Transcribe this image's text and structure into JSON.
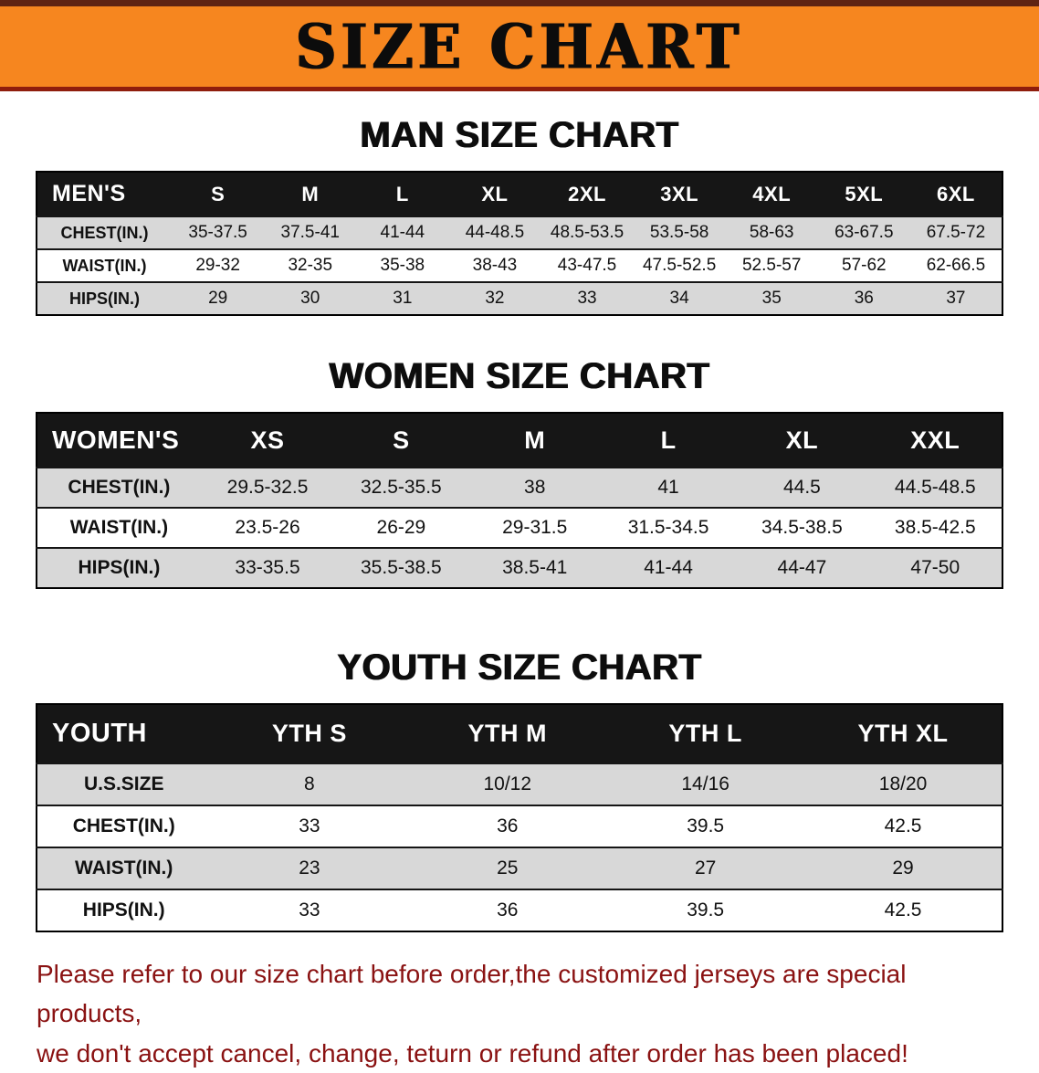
{
  "banner": {
    "title": "SIZE CHART"
  },
  "sections": [
    {
      "heading": "MAN SIZE CHART",
      "table": {
        "header": [
          "MEN'S",
          "S",
          "M",
          "L",
          "XL",
          "2XL",
          "3XL",
          "4XL",
          "5XL",
          "6XL"
        ],
        "rows": [
          {
            "label": "CHEST(IN.)",
            "values": [
              "35-37.5",
              "37.5-41",
              "41-44",
              "44-48.5",
              "48.5-53.5",
              "53.5-58",
              "58-63",
              "63-67.5",
              "67.5-72"
            ]
          },
          {
            "label": "WAIST(IN.)",
            "values": [
              "29-32",
              "32-35",
              "35-38",
              "38-43",
              "43-47.5",
              "47.5-52.5",
              "52.5-57",
              "57-62",
              "62-66.5"
            ]
          },
          {
            "label": "HIPS(IN.)",
            "values": [
              "29",
              "30",
              "31",
              "32",
              "33",
              "34",
              "35",
              "36",
              "37"
            ]
          }
        ]
      }
    },
    {
      "heading": "WOMEN SIZE CHART",
      "table": {
        "header": [
          "WOMEN'S",
          "XS",
          "S",
          "M",
          "L",
          "XL",
          "XXL"
        ],
        "rows": [
          {
            "label": "CHEST(IN.)",
            "values": [
              "29.5-32.5",
              "32.5-35.5",
              "38",
              "41",
              "44.5",
              "44.5-48.5"
            ]
          },
          {
            "label": "WAIST(IN.)",
            "values": [
              "23.5-26",
              "26-29",
              "29-31.5",
              "31.5-34.5",
              "34.5-38.5",
              "38.5-42.5"
            ]
          },
          {
            "label": "HIPS(IN.)",
            "values": [
              "33-35.5",
              "35.5-38.5",
              "38.5-41",
              "41-44",
              "44-47",
              "47-50"
            ]
          }
        ]
      }
    },
    {
      "heading": "YOUTH SIZE CHART",
      "table": {
        "header": [
          "YOUTH",
          "YTH S",
          "YTH M",
          "YTH L",
          "YTH XL"
        ],
        "rows": [
          {
            "label": "U.S.SIZE",
            "values": [
              "8",
              "10/12",
              "14/16",
              "18/20"
            ]
          },
          {
            "label": "CHEST(IN.)",
            "values": [
              "33",
              "36",
              "39.5",
              "42.5"
            ]
          },
          {
            "label": "WAIST(IN.)",
            "values": [
              "23",
              "25",
              "27",
              "29"
            ]
          },
          {
            "label": "HIPS(IN.)",
            "values": [
              "33",
              "36",
              "39.5",
              "42.5"
            ]
          }
        ]
      }
    }
  ],
  "footer": {
    "line1": "Please refer to our size chart before order,the customized jerseys are special products,",
    "line2": "we don't accept cancel, change, teturn or refund after order has been placed!"
  },
  "colors": {
    "banner-bg": "#f6861f",
    "banner-stripe-top": "#5f2413",
    "banner-stripe-bottom": "#8f1d0c",
    "table-header-bg": "#161616",
    "row-alt-bg": "#d8d8d8",
    "footer-red": "#8a1212",
    "text-black": "#111111"
  }
}
